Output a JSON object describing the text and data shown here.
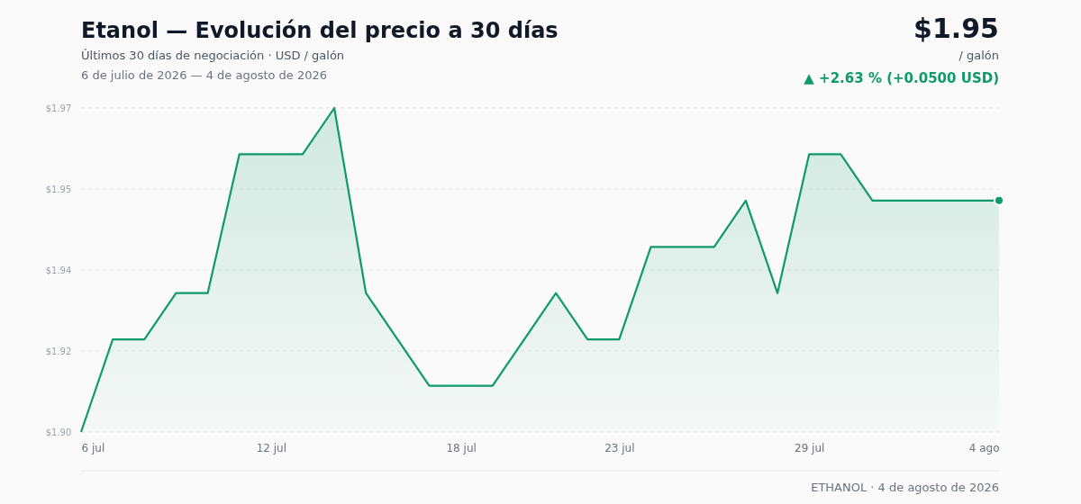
{
  "chart_data": {
    "type": "area",
    "title": "Etanol — Evolución del precio a 30 días",
    "subtitle": "Últimos 30 días de negociación · USD / galón",
    "annotations": [
      "6 de julio de 2026 — 4 de agosto de 2026",
      "$1.95",
      "/ galón",
      "▲ +2.63 % (+0.0500 USD)",
      "ETHANOL · 4 de agosto de 2026"
    ],
    "x": [
      "2026-07-06",
      "2026-07-07",
      "2026-07-08",
      "2026-07-09",
      "2026-07-10",
      "2026-07-11",
      "2026-07-12",
      "2026-07-13",
      "2026-07-14",
      "2026-07-15",
      "2026-07-16",
      "2026-07-17",
      "2026-07-18",
      "2026-07-19",
      "2026-07-20",
      "2026-07-21",
      "2026-07-22",
      "2026-07-23",
      "2026-07-24",
      "2026-07-25",
      "2026-07-26",
      "2026-07-27",
      "2026-07-28",
      "2026-07-29",
      "2026-07-30",
      "2026-07-31",
      "2026-08-01",
      "2026-08-02",
      "2026-08-03",
      "2026-08-04"
    ],
    "series": [
      {
        "color": "#0e9a6a",
        "values": [
          1.9,
          1.92,
          1.92,
          1.93,
          1.93,
          1.96,
          1.96,
          1.96,
          1.97,
          1.93,
          1.92,
          1.91,
          1.91,
          1.91,
          1.92,
          1.93,
          1.92,
          1.92,
          1.94,
          1.94,
          1.94,
          1.95,
          1.93,
          1.96,
          1.96,
          1.95,
          1.95,
          1.95,
          1.95,
          1.95
        ]
      }
    ],
    "xlim": [
      "2026-07-06",
      "2026-08-04"
    ],
    "xticks": [
      {
        "value": "2026-07-06",
        "label": "6 jul"
      },
      {
        "value": "2026-07-12",
        "label": "12 jul"
      },
      {
        "value": "2026-07-18",
        "label": "18 jul"
      },
      {
        "value": "2026-07-23",
        "label": "23 jul"
      },
      {
        "value": "2026-07-29",
        "label": "29 jul"
      },
      {
        "value": "2026-08-04",
        "label": "4 ago"
      }
    ],
    "ylim": [
      1.9,
      1.97
    ],
    "yticks": [
      {
        "value": 1.9,
        "label": "$1.90"
      },
      {
        "value": 1.9175,
        "label": "$1.92"
      },
      {
        "value": 1.935,
        "label": "$1.94"
      },
      {
        "value": 1.9525,
        "label": "$1.95"
      },
      {
        "value": 1.97,
        "label": "$1.97"
      }
    ],
    "grid": "y",
    "line_style": "solid",
    "marker": "none"
  }
}
